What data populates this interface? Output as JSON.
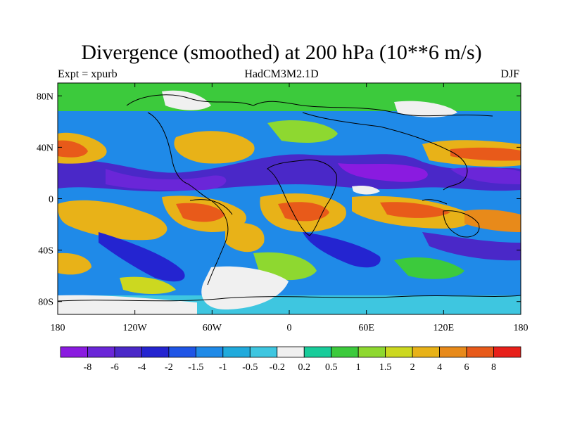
{
  "title": "Divergence (smoothed) at 200 hPa (10**6 m/s)",
  "subtitle_left": "Expt = xpurb",
  "subtitle_center": "HadCM3M2.1D",
  "subtitle_right": "DJF",
  "y_tick_labels": [
    "80N",
    "40N",
    "0",
    "40S",
    "80S"
  ],
  "y_tick_values": [
    80,
    40,
    0,
    -40,
    -80
  ],
  "x_tick_labels": [
    "180",
    "120W",
    "60W",
    "0",
    "60E",
    "120E",
    "180"
  ],
  "x_tick_values": [
    -180,
    -120,
    -60,
    0,
    60,
    120,
    180
  ],
  "colorbar": {
    "labels": [
      "-8",
      "-6",
      "-4",
      "-2",
      "-1.5",
      "-1",
      "-0.5",
      "-0.2",
      "0.2",
      "0.5",
      "1",
      "1.5",
      "2",
      "4",
      "6",
      "8"
    ],
    "colors": [
      "#8a1be0",
      "#6a26d8",
      "#4a28c8",
      "#2424d0",
      "#1f55e6",
      "#1f8ae8",
      "#20aadc",
      "#3ec6e0",
      "#f0f0f0",
      "#18cc9a",
      "#3cca3c",
      "#8ed830",
      "#ccd820",
      "#e8b218",
      "#e88a1a",
      "#e85a1a",
      "#e8201a"
    ]
  },
  "map": {
    "lon_range": [
      -180,
      180
    ],
    "lat_range": [
      -90,
      90
    ],
    "field": "divergence at 200 hPa"
  }
}
